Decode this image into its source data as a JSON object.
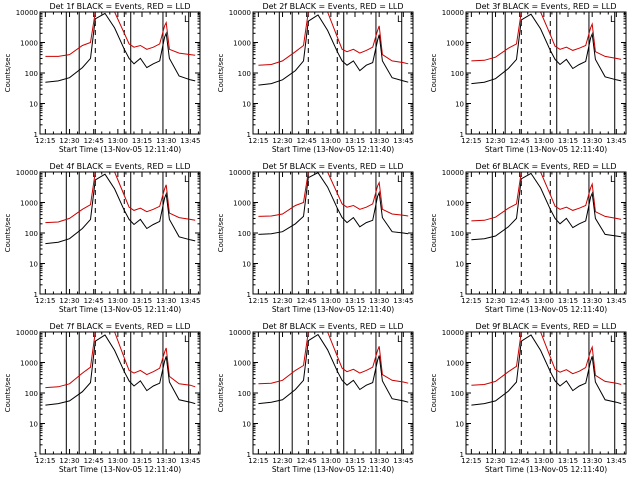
{
  "common": {
    "xlabel": "Start Time (13-Nov-05 12:11:40)",
    "ylabel": "Counts/sec",
    "x_tick_labels": [
      "12:15",
      "12:30",
      "12:45",
      "13:00",
      "13:15",
      "13:30",
      "13:45"
    ],
    "y_tick_labels": [
      "1",
      "10",
      "100",
      "1000",
      "10000"
    ],
    "ylim": [
      1,
      10000
    ],
    "yscale": "log",
    "legend_marker": "L",
    "colors": {
      "events": "#000000",
      "lld": "#cc0000",
      "axes": "#000000"
    }
  },
  "chart_data": [
    {
      "type": "line",
      "title": "Det 1f BLACK = Events, RED = LLD",
      "x": [
        "12:15",
        "12:23",
        "12:30",
        "12:38",
        "12:43",
        "12:46",
        "12:52",
        "12:58",
        "13:04",
        "13:07",
        "13:10",
        "13:14",
        "13:18",
        "13:22",
        "13:26",
        "13:29",
        "13:30",
        "13:32",
        "13:38",
        "13:45",
        "13:48"
      ],
      "series": [
        {
          "name": "Events",
          "color": "#000000",
          "values": [
            50,
            55,
            70,
            150,
            300,
            6000,
            9000,
            3000,
            600,
            300,
            200,
            300,
            150,
            200,
            250,
            1500,
            2000,
            300,
            80,
            60,
            55
          ]
        },
        {
          "name": "LLD",
          "color": "#cc0000",
          "values": [
            350,
            350,
            400,
            800,
            1000,
            10000,
            10000,
            10000,
            2000,
            900,
            700,
            800,
            600,
            700,
            900,
            3500,
            4500,
            600,
            450,
            400,
            380
          ]
        }
      ]
    },
    {
      "type": "line",
      "title": "Det 2f BLACK = Events, RED = LLD",
      "x": [
        "12:15",
        "12:23",
        "12:30",
        "12:38",
        "12:43",
        "12:46",
        "12:52",
        "12:58",
        "13:04",
        "13:07",
        "13:10",
        "13:14",
        "13:18",
        "13:22",
        "13:26",
        "13:29",
        "13:30",
        "13:32",
        "13:38",
        "13:45",
        "13:48"
      ],
      "series": [
        {
          "name": "Events",
          "color": "#000000",
          "values": [
            40,
            45,
            60,
            120,
            250,
            5000,
            8000,
            2500,
            500,
            250,
            180,
            250,
            120,
            180,
            220,
            1200,
            1800,
            250,
            70,
            55,
            50
          ]
        },
        {
          "name": "LLD",
          "color": "#cc0000",
          "values": [
            180,
            190,
            250,
            500,
            800,
            10000,
            10000,
            10000,
            1500,
            600,
            500,
            600,
            450,
            550,
            700,
            2500,
            3500,
            400,
            250,
            220,
            200
          ]
        }
      ]
    },
    {
      "type": "line",
      "title": "Det 3f BLACK = Events, RED = LLD",
      "x": [
        "12:15",
        "12:23",
        "12:30",
        "12:38",
        "12:43",
        "12:46",
        "12:52",
        "12:58",
        "13:04",
        "13:07",
        "13:10",
        "13:14",
        "13:18",
        "13:22",
        "13:26",
        "13:29",
        "13:30",
        "13:32",
        "13:38",
        "13:45",
        "13:48"
      ],
      "series": [
        {
          "name": "Events",
          "color": "#000000",
          "values": [
            45,
            50,
            65,
            140,
            280,
            5500,
            8500,
            2800,
            550,
            280,
            190,
            280,
            140,
            190,
            240,
            1400,
            1900,
            280,
            75,
            60,
            55
          ]
        },
        {
          "name": "LLD",
          "color": "#cc0000",
          "values": [
            250,
            260,
            330,
            650,
            900,
            10000,
            10000,
            10000,
            1800,
            750,
            600,
            700,
            550,
            650,
            800,
            3000,
            4000,
            500,
            350,
            300,
            280
          ]
        }
      ]
    },
    {
      "type": "line",
      "title": "Det 4f BLACK = Events, RED = LLD",
      "x": [
        "12:15",
        "12:23",
        "12:30",
        "12:38",
        "12:43",
        "12:46",
        "12:52",
        "12:58",
        "13:04",
        "13:07",
        "13:10",
        "13:14",
        "13:18",
        "13:22",
        "13:26",
        "13:29",
        "13:30",
        "13:32",
        "13:38",
        "13:45",
        "13:48"
      ],
      "series": [
        {
          "name": "Events",
          "color": "#000000",
          "values": [
            45,
            50,
            65,
            140,
            280,
            5500,
            8500,
            2800,
            550,
            280,
            190,
            280,
            140,
            190,
            240,
            1400,
            1900,
            280,
            75,
            60,
            55
          ]
        },
        {
          "name": "LLD",
          "color": "#cc0000",
          "values": [
            220,
            230,
            300,
            600,
            850,
            10000,
            10000,
            10000,
            1700,
            700,
            550,
            650,
            500,
            600,
            750,
            2800,
            3800,
            450,
            320,
            280,
            260
          ]
        }
      ]
    },
    {
      "type": "line",
      "title": "Det 5f BLACK = Events, RED = LLD",
      "x": [
        "12:15",
        "12:23",
        "12:30",
        "12:38",
        "12:43",
        "12:46",
        "12:52",
        "12:58",
        "13:04",
        "13:07",
        "13:10",
        "13:14",
        "13:18",
        "13:22",
        "13:26",
        "13:29",
        "13:30",
        "13:32",
        "13:38",
        "13:45",
        "13:48"
      ],
      "series": [
        {
          "name": "Events",
          "color": "#000000",
          "values": [
            90,
            95,
            110,
            200,
            350,
            6500,
            9500,
            3200,
            650,
            320,
            220,
            320,
            160,
            220,
            260,
            1600,
            2100,
            320,
            110,
            100,
            95
          ]
        },
        {
          "name": "LLD",
          "color": "#cc0000",
          "values": [
            350,
            360,
            420,
            800,
            1000,
            10000,
            10000,
            10000,
            2000,
            900,
            700,
            800,
            600,
            700,
            900,
            3500,
            4500,
            600,
            420,
            380,
            360
          ]
        }
      ]
    },
    {
      "type": "line",
      "title": "Det 6f BLACK = Events, RED = LLD",
      "x": [
        "12:15",
        "12:23",
        "12:30",
        "12:38",
        "12:43",
        "12:46",
        "12:52",
        "12:58",
        "13:04",
        "13:07",
        "13:10",
        "13:14",
        "13:18",
        "13:22",
        "13:26",
        "13:29",
        "13:30",
        "13:32",
        "13:38",
        "13:45",
        "13:48"
      ],
      "series": [
        {
          "name": "Events",
          "color": "#000000",
          "values": [
            60,
            65,
            80,
            160,
            300,
            6000,
            9000,
            3000,
            600,
            300,
            200,
            300,
            150,
            200,
            250,
            1500,
            2000,
            300,
            90,
            80,
            75
          ]
        },
        {
          "name": "LLD",
          "color": "#cc0000",
          "values": [
            250,
            260,
            330,
            650,
            900,
            10000,
            10000,
            10000,
            1800,
            750,
            600,
            700,
            550,
            650,
            800,
            3000,
            4000,
            500,
            350,
            300,
            280
          ]
        }
      ]
    },
    {
      "type": "line",
      "title": "Det 7f BLACK = Events, RED = LLD",
      "x": [
        "12:15",
        "12:23",
        "12:30",
        "12:38",
        "12:43",
        "12:46",
        "12:52",
        "12:58",
        "13:04",
        "13:07",
        "13:10",
        "13:14",
        "13:18",
        "13:22",
        "13:26",
        "13:29",
        "13:30",
        "13:32",
        "13:38",
        "13:45",
        "13:48"
      ],
      "series": [
        {
          "name": "Events",
          "color": "#000000",
          "values": [
            40,
            45,
            55,
            110,
            220,
            5000,
            8000,
            2500,
            500,
            250,
            170,
            250,
            120,
            170,
            210,
            1100,
            1600,
            230,
            60,
            50,
            45
          ]
        },
        {
          "name": "LLD",
          "color": "#cc0000",
          "values": [
            150,
            160,
            200,
            450,
            700,
            10000,
            10000,
            10000,
            1400,
            550,
            450,
            550,
            400,
            500,
            650,
            2200,
            3000,
            350,
            200,
            180,
            160
          ]
        }
      ]
    },
    {
      "type": "line",
      "title": "Det 8f BLACK = Events, RED = LLD",
      "x": [
        "12:15",
        "12:23",
        "12:30",
        "12:38",
        "12:43",
        "12:46",
        "12:52",
        "12:58",
        "13:04",
        "13:07",
        "13:10",
        "13:14",
        "13:18",
        "13:22",
        "13:26",
        "13:29",
        "13:30",
        "13:32",
        "13:38",
        "13:45",
        "13:48"
      ],
      "series": [
        {
          "name": "Events",
          "color": "#000000",
          "values": [
            45,
            50,
            60,
            130,
            260,
            5200,
            8200,
            2600,
            520,
            260,
            180,
            260,
            130,
            180,
            220,
            1200,
            1700,
            250,
            65,
            55,
            50
          ]
        },
        {
          "name": "LLD",
          "color": "#cc0000",
          "values": [
            200,
            210,
            260,
            550,
            800,
            10000,
            10000,
            10000,
            1600,
            650,
            500,
            600,
            450,
            550,
            700,
            2500,
            3400,
            400,
            260,
            230,
            210
          ]
        }
      ]
    },
    {
      "type": "line",
      "title": "Det 9f BLACK = Events, RED = LLD",
      "x": [
        "12:15",
        "12:23",
        "12:30",
        "12:38",
        "12:43",
        "12:46",
        "12:52",
        "12:58",
        "13:04",
        "13:07",
        "13:10",
        "13:14",
        "13:18",
        "13:22",
        "13:26",
        "13:29",
        "13:30",
        "13:32",
        "13:38",
        "13:45",
        "13:48"
      ],
      "series": [
        {
          "name": "Events",
          "color": "#000000",
          "values": [
            40,
            45,
            55,
            115,
            230,
            5000,
            8000,
            2500,
            500,
            250,
            170,
            250,
            120,
            170,
            210,
            1100,
            1600,
            230,
            60,
            50,
            45
          ]
        },
        {
          "name": "LLD",
          "color": "#cc0000",
          "values": [
            180,
            190,
            240,
            500,
            750,
            10000,
            10000,
            10000,
            1500,
            600,
            480,
            580,
            430,
            520,
            680,
            2400,
            3200,
            380,
            240,
            210,
            190
          ]
        }
      ]
    }
  ]
}
